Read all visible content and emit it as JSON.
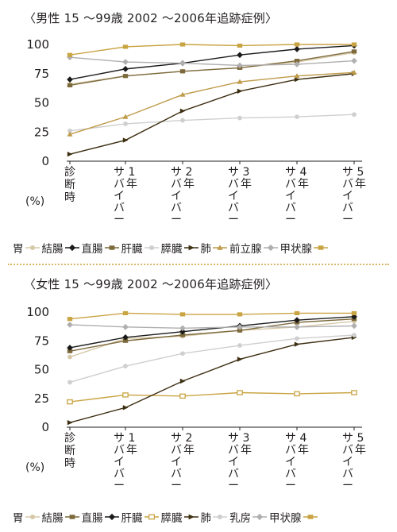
{
  "chart_data": [
    {
      "type": "line",
      "title": "〈男性 15 〜99歳 2002 〜2006年追跡症例〉",
      "y_unit": "(%)",
      "ylim": [
        0,
        100
      ],
      "yticks": [
        "0",
        "25",
        "50",
        "75",
        "100"
      ],
      "categories": [
        "診断時",
        "サバイバー1年",
        "サバイバー2年",
        "サバイバー3年",
        "サバイバー4年",
        "サバイバー5年"
      ],
      "grid": false,
      "legend_position": "bottom",
      "series": [
        {
          "name": "胃",
          "color": "#d6c9a8",
          "marker": "circle-filled",
          "values": [
            66,
            73,
            77,
            80,
            85,
            93
          ]
        },
        {
          "name": "結腸",
          "color": "#1a1a1a",
          "marker": "diamond",
          "values": [
            70,
            79,
            84,
            91,
            96,
            99
          ]
        },
        {
          "name": "直腸",
          "color": "#7d6a3c",
          "marker": "square-filled",
          "values": [
            65,
            73,
            77,
            80,
            86,
            94
          ]
        },
        {
          "name": "肝臓",
          "color": "#cfcfcf",
          "marker": "circle-filled",
          "values": [
            26,
            32,
            35,
            37,
            38,
            40
          ]
        },
        {
          "name": "膵臓",
          "color": "#3d2f12",
          "marker": "triangle-right",
          "values": [
            6,
            18,
            43,
            60,
            70,
            75
          ]
        },
        {
          "name": "肺",
          "color": "#bf9b4a",
          "marker": "triangle-up",
          "values": [
            23,
            38,
            57,
            68,
            73,
            76
          ]
        },
        {
          "name": "前立腺",
          "color": "#b0aeae",
          "marker": "diamond",
          "values": [
            89,
            85,
            84,
            82,
            83,
            86
          ]
        },
        {
          "name": "甲状腺",
          "color": "#c9a443",
          "marker": "square-filled",
          "values": [
            91,
            98,
            100,
            99,
            100,
            100
          ]
        }
      ]
    },
    {
      "type": "line",
      "title": "〈女性 15 〜99歳 2002 〜2006年追跡症例〉",
      "y_unit": "(%)",
      "ylim": [
        0,
        100
      ],
      "yticks": [
        "0",
        "25",
        "50",
        "75",
        "100"
      ],
      "categories": [
        "診断時",
        "サバイバー1年",
        "サバイバー2年",
        "サバイバー3年",
        "サバイバー4年",
        "サバイバー5年"
      ],
      "grid": false,
      "legend_position": "bottom",
      "series": [
        {
          "name": "胃",
          "color": "#d6c9a8",
          "marker": "circle-filled",
          "values": [
            61,
            77,
            79,
            84,
            87,
            92
          ]
        },
        {
          "name": "結腸",
          "color": "#7d6a3c",
          "marker": "square-filled",
          "values": [
            66,
            75,
            80,
            84,
            91,
            94
          ]
        },
        {
          "name": "直腸",
          "color": "#1a1a1a",
          "marker": "diamond",
          "values": [
            69,
            78,
            83,
            88,
            93,
            96
          ]
        },
        {
          "name": "肝臓",
          "color": "#c9a443",
          "marker": "square-open",
          "values": [
            22,
            28,
            27,
            30,
            29,
            30
          ]
        },
        {
          "name": "膵臓",
          "color": "#3d2f12",
          "marker": "triangle-right",
          "values": [
            4,
            17,
            40,
            59,
            72,
            78
          ]
        },
        {
          "name": "肺",
          "color": "#cfcfcf",
          "marker": "circle-filled",
          "values": [
            39,
            53,
            64,
            71,
            77,
            80
          ]
        },
        {
          "name": "乳房",
          "color": "#b0aeae",
          "marker": "diamond",
          "values": [
            89,
            87,
            86,
            87,
            87,
            88
          ]
        },
        {
          "name": "甲状腺",
          "color": "#c9a443",
          "marker": "square-filled",
          "values": [
            94,
            99,
            98,
            98,
            99,
            99
          ]
        }
      ]
    }
  ]
}
